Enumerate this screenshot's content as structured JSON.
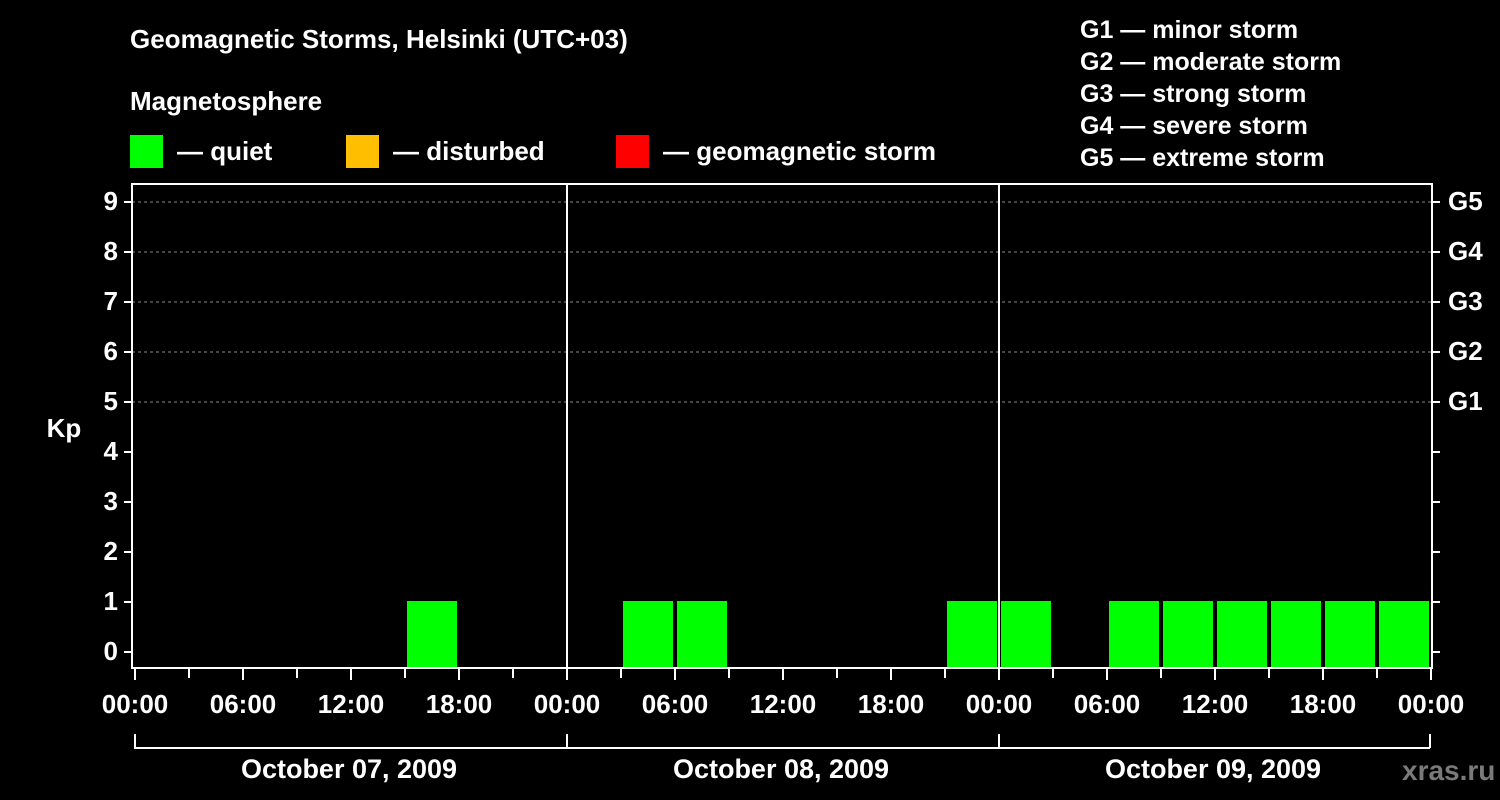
{
  "title": "Geomagnetic Storms, Helsinki (UTC+03)",
  "magnetosphere": {
    "title": "Magnetosphere",
    "items": [
      {
        "label": "— quiet",
        "color": "#00ff00"
      },
      {
        "label": "— disturbed",
        "color": "#ffbf00"
      },
      {
        "label": "— geomagnetic storm",
        "color": "#ff0000"
      }
    ]
  },
  "storm_scale": [
    "G1 — minor storm",
    "G2 — moderate storm",
    "G3 — strong storm",
    "G4 — severe storm",
    "G5 — extreme storm"
  ],
  "watermark": "xras.ru",
  "chart_data": {
    "type": "bar",
    "ylabel": "Kp",
    "ylim": [
      0,
      9
    ],
    "y_ticks": [
      "0",
      "1",
      "2",
      "3",
      "4",
      "5",
      "6",
      "7",
      "8",
      "9"
    ],
    "right_ticks": [
      {
        "kp": 5,
        "label": "G1"
      },
      {
        "kp": 6,
        "label": "G2"
      },
      {
        "kp": 7,
        "label": "G3"
      },
      {
        "kp": 8,
        "label": "G4"
      },
      {
        "kp": 9,
        "label": "G5"
      }
    ],
    "grid": "dashed at Kp 5-9",
    "x_ticks": [
      "00:00",
      "06:00",
      "12:00",
      "18:00",
      "00:00",
      "06:00",
      "12:00",
      "18:00",
      "00:00",
      "06:00",
      "12:00",
      "18:00",
      "00:00"
    ],
    "days": [
      "October 07, 2009",
      "October 08, 2009",
      "October 09, 2009"
    ],
    "bar_hours": 3,
    "categories": [
      "Oct 07 00:00",
      "Oct 07 03:00",
      "Oct 07 06:00",
      "Oct 07 09:00",
      "Oct 07 12:00",
      "Oct 07 15:00",
      "Oct 07 18:00",
      "Oct 07 21:00",
      "Oct 08 00:00",
      "Oct 08 03:00",
      "Oct 08 06:00",
      "Oct 08 09:00",
      "Oct 08 12:00",
      "Oct 08 15:00",
      "Oct 08 18:00",
      "Oct 08 21:00",
      "Oct 09 00:00",
      "Oct 09 03:00",
      "Oct 09 06:00",
      "Oct 09 09:00",
      "Oct 09 12:00",
      "Oct 09 15:00",
      "Oct 09 18:00",
      "Oct 09 21:00"
    ],
    "values": [
      0,
      0,
      0,
      0,
      0,
      1,
      0,
      0,
      0,
      1,
      1,
      0,
      0,
      0,
      0,
      1,
      1,
      0,
      1,
      1,
      1,
      1,
      1,
      1
    ],
    "bar_color": "#00ff00"
  }
}
